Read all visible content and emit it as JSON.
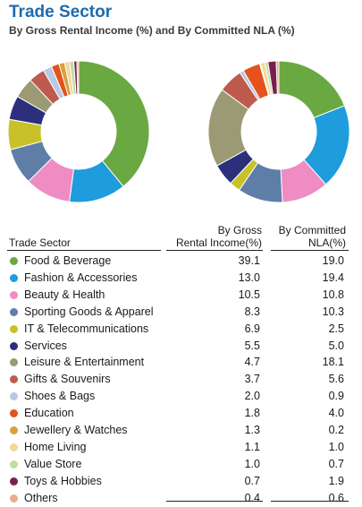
{
  "title": "Trade Sector",
  "subtitle": "By Gross Rental Income (%) and By Committed NLA (%)",
  "table": {
    "col_sector": "Trade Sector",
    "col_gri": [
      "By Gross",
      "Rental Income(%)"
    ],
    "col_nla": [
      "By Committed",
      "NLA(%)"
    ]
  },
  "chart_data": {
    "type": "pie",
    "variant": "donut",
    "categories": [
      "Food & Beverage",
      "Fashion & Accessories",
      "Beauty & Health",
      "Sporting Goods & Apparel",
      "IT & Telecommunications",
      "Services",
      "Leisure & Entertainment",
      "Gifts & Souvenirs",
      "Shoes & Bags",
      "Education",
      "Jewellery & Watches",
      "Home Living",
      "Value Store",
      "Toys & Hobbies",
      "Others"
    ],
    "colors": [
      "#6aa842",
      "#1e9cdc",
      "#ee8cc3",
      "#5e7ea8",
      "#c8c22a",
      "#2b2f7c",
      "#9c9a74",
      "#bf5a4f",
      "#b8c8e6",
      "#e4531c",
      "#d9a040",
      "#f2d898",
      "#c3dca5",
      "#7a1f4d",
      "#e8ac8e"
    ],
    "series": [
      {
        "name": "By Gross Rental Income(%)",
        "values": [
          39.1,
          13.0,
          10.5,
          8.3,
          6.9,
          5.5,
          4.7,
          3.7,
          2.0,
          1.8,
          1.3,
          1.1,
          1.0,
          0.7,
          0.4
        ]
      },
      {
        "name": "By Committed NLA(%)",
        "values": [
          19.0,
          19.4,
          10.8,
          10.3,
          2.5,
          5.0,
          18.1,
          5.6,
          0.9,
          4.0,
          0.2,
          1.0,
          0.7,
          1.9,
          0.6
        ]
      }
    ]
  }
}
